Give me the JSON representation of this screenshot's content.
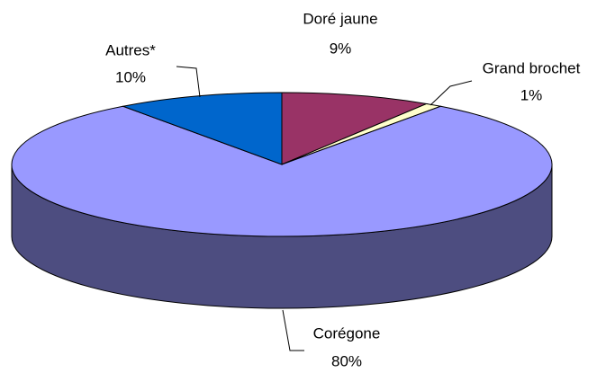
{
  "chart_data": {
    "type": "pie3d",
    "categories": [
      "Doré jaune",
      "Grand brochet",
      "Corégone",
      "Autres*"
    ],
    "values": [
      9,
      1,
      80,
      10
    ],
    "value_labels": [
      "9%",
      "1%",
      "80%",
      "10%"
    ],
    "colors": [
      "#993366",
      "#ffffcc",
      "#9999ff",
      "#0066cc"
    ]
  }
}
